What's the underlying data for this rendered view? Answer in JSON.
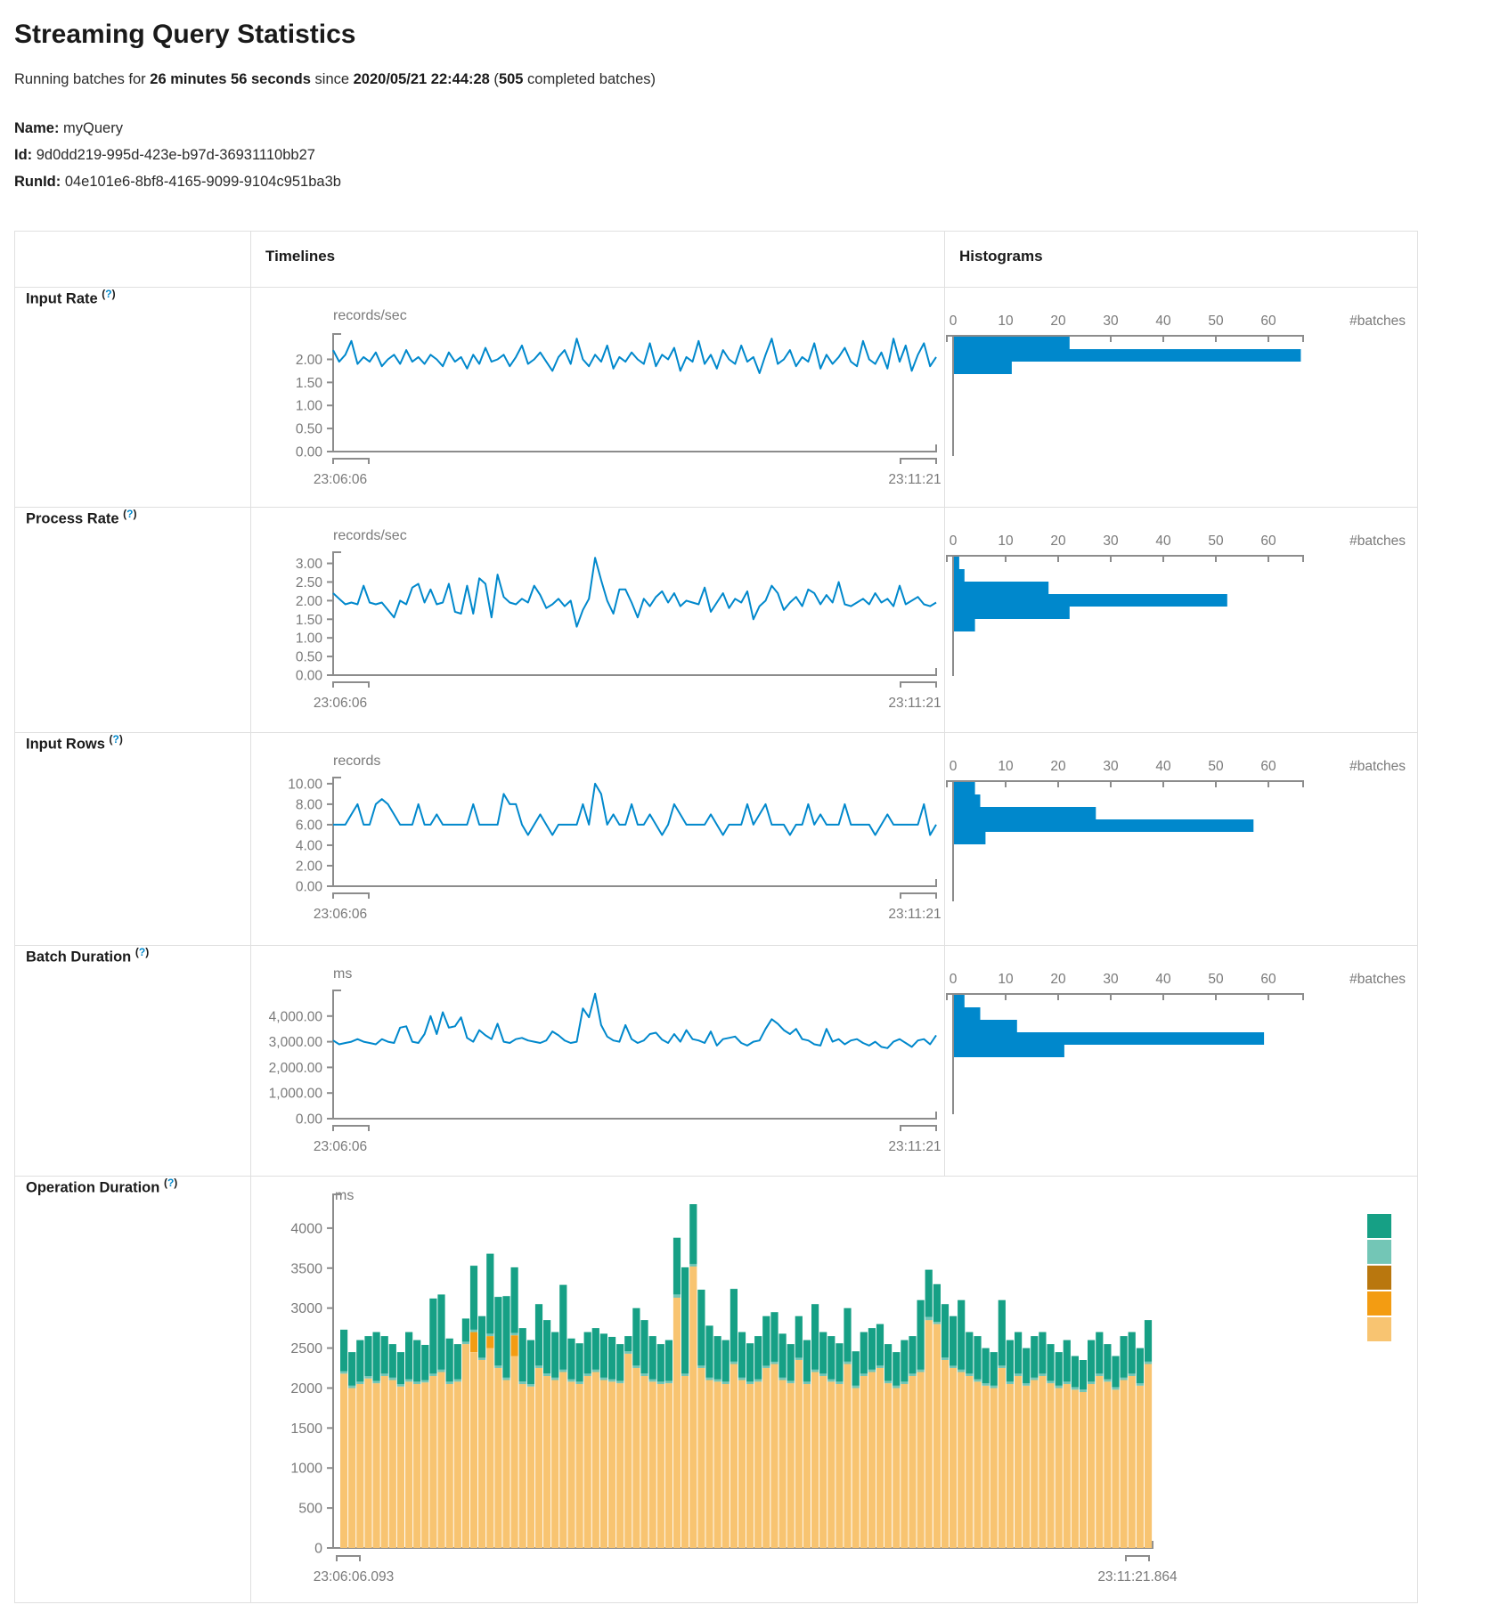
{
  "page": {
    "title": "Streaming Query Statistics",
    "subtitle_prefix": "Running batches for ",
    "duration": "26 minutes 56 seconds",
    "since_word": " since ",
    "start_time": "2020/05/21 22:44:28",
    "paren_open": " (",
    "completed_batches": "505",
    "batches_suffix": " completed batches)"
  },
  "query": {
    "name_label": "Name:",
    "name": " myQuery",
    "id_label": "Id:",
    "id": " 9d0dd219-995d-423e-b97d-36931110bb27",
    "runid_label": "RunId:",
    "runid": " 04e101e6-8bf8-4165-9099-9104c951ba3b"
  },
  "ui": {
    "timelines_header": "Timelines",
    "histograms_header": "Histograms",
    "help_open": "(",
    "help_mark": "?",
    "help_close": ")"
  },
  "colors": {
    "line": "#0088CC",
    "axis": "#8c8c8c",
    "tick_text": "#7a7a7a",
    "ops": [
      "#16A085",
      "#73C6B6",
      "#B9770E",
      "#F39C12",
      "#F8C471"
    ]
  },
  "rows": [
    {
      "label": "Input Rate"
    },
    {
      "label": "Process Rate"
    },
    {
      "label": "Input Rows"
    },
    {
      "label": "Batch Duration"
    },
    {
      "label": "Operation Duration"
    }
  ],
  "chart_data": [
    {
      "id": "input-rate-timeline",
      "type": "line",
      "unit": "records/sec",
      "x_start": "23:06:06",
      "x_end": "23:11:21",
      "y_ticks": [
        0,
        0.5,
        1,
        1.5,
        2
      ],
      "y_tick_labels": [
        "0.00",
        "0.50",
        "1.00",
        "1.50",
        "2.00"
      ],
      "ylim": [
        0,
        2.55
      ],
      "values": [
        2.2,
        1.95,
        2.1,
        2.4,
        1.9,
        2.05,
        1.95,
        2.15,
        1.85,
        2.0,
        2.1,
        1.9,
        2.2,
        1.95,
        2.05,
        1.9,
        2.1,
        2.0,
        1.85,
        2.15,
        1.95,
        2.05,
        1.8,
        2.1,
        1.9,
        2.25,
        1.95,
        2.0,
        2.1,
        1.85,
        2.05,
        2.3,
        1.9,
        2.0,
        2.15,
        1.95,
        1.75,
        2.05,
        2.2,
        1.9,
        2.45,
        2.0,
        1.85,
        2.1,
        1.95,
        2.3,
        1.8,
        2.05,
        1.95,
        2.15,
        2.0,
        1.9,
        2.35,
        1.85,
        2.1,
        2.0,
        2.25,
        1.75,
        2.05,
        1.95,
        2.4,
        1.9,
        2.1,
        1.8,
        2.2,
        2.0,
        1.9,
        2.3,
        1.95,
        2.05,
        1.7,
        2.1,
        2.45,
        1.9,
        2.0,
        2.2,
        1.85,
        2.05,
        1.95,
        2.35,
        1.8,
        2.1,
        1.9,
        2.05,
        2.25,
        1.95,
        1.85,
        2.4,
        2.0,
        1.9,
        2.15,
        1.8,
        2.45,
        1.95,
        2.3,
        1.75,
        2.1,
        2.35,
        1.85,
        2.05
      ]
    },
    {
      "id": "input-rate-histogram",
      "type": "bar",
      "orientation": "horizontal",
      "xlabel": "#batches",
      "x_ticks": [
        0,
        10,
        20,
        30,
        40,
        50,
        60
      ],
      "xlim": [
        0,
        68
      ],
      "values": [
        22,
        66,
        11
      ]
    },
    {
      "id": "process-rate-timeline",
      "type": "line",
      "unit": "records/sec",
      "x_start": "23:06:06",
      "x_end": "23:11:21",
      "y_ticks": [
        0,
        0.5,
        1,
        1.5,
        2,
        2.5,
        3
      ],
      "y_tick_labels": [
        "0.00",
        "0.50",
        "1.00",
        "1.50",
        "2.00",
        "2.50",
        "3.00"
      ],
      "ylim": [
        0,
        3.3
      ],
      "values": [
        2.2,
        2.05,
        1.9,
        1.95,
        1.9,
        2.4,
        1.95,
        1.9,
        1.95,
        1.75,
        1.55,
        2.0,
        1.9,
        2.35,
        2.45,
        1.95,
        2.3,
        1.9,
        1.95,
        2.45,
        1.7,
        1.65,
        2.4,
        1.65,
        2.6,
        2.45,
        1.55,
        2.7,
        2.1,
        1.95,
        1.9,
        2.05,
        1.95,
        2.4,
        2.15,
        1.8,
        1.9,
        2.05,
        1.85,
        2.0,
        1.3,
        1.75,
        2.05,
        3.15,
        2.55,
        2.0,
        1.65,
        2.3,
        2.3,
        1.95,
        1.55,
        2.05,
        1.85,
        2.1,
        2.25,
        1.95,
        2.2,
        1.85,
        2.0,
        1.95,
        1.9,
        2.35,
        1.7,
        1.95,
        2.2,
        1.8,
        2.05,
        1.95,
        2.25,
        1.5,
        1.85,
        2.0,
        2.4,
        2.2,
        1.75,
        1.95,
        2.1,
        1.85,
        2.3,
        2.2,
        1.9,
        2.15,
        1.95,
        2.5,
        1.9,
        1.85,
        1.95,
        2.05,
        1.9,
        2.2,
        1.95,
        2.05,
        1.85,
        2.4,
        1.9,
        2.0,
        2.1,
        1.9,
        1.85,
        1.95
      ]
    },
    {
      "id": "process-rate-histogram",
      "type": "bar",
      "orientation": "horizontal",
      "xlabel": "#batches",
      "x_ticks": [
        0,
        10,
        20,
        30,
        40,
        50,
        60
      ],
      "xlim": [
        0,
        68
      ],
      "values": [
        1,
        2,
        18,
        52,
        22,
        4
      ]
    },
    {
      "id": "input-rows-timeline",
      "type": "line",
      "unit": "records",
      "x_start": "23:06:06",
      "x_end": "23:11:21",
      "y_ticks": [
        0,
        2,
        4,
        6,
        8,
        10
      ],
      "y_tick_labels": [
        "0.00",
        "2.00",
        "4.00",
        "6.00",
        "8.00",
        "10.00"
      ],
      "ylim": [
        0,
        10.6
      ],
      "values": [
        6,
        6,
        6,
        7,
        8,
        6,
        6,
        8,
        8.5,
        8,
        7,
        6,
        6,
        6,
        8,
        6,
        6,
        7,
        6,
        6,
        6,
        6,
        6,
        8,
        6,
        6,
        6,
        6,
        9,
        8,
        8,
        6,
        5,
        6,
        7,
        6,
        5,
        6,
        6,
        6,
        6,
        8,
        6,
        10,
        9,
        6,
        7,
        6,
        6,
        8,
        6,
        6,
        7,
        6,
        5,
        6,
        8,
        7,
        6,
        6,
        6,
        6,
        7,
        6,
        5,
        6,
        6,
        6,
        8,
        6,
        7,
        8,
        6,
        6,
        6,
        5,
        6,
        6,
        8,
        6,
        7,
        6,
        6,
        6,
        8,
        6,
        6,
        6,
        6,
        5,
        6,
        7,
        6,
        6,
        6,
        6,
        6,
        8,
        5,
        6
      ]
    },
    {
      "id": "input-rows-histogram",
      "type": "bar",
      "orientation": "horizontal",
      "xlabel": "#batches",
      "x_ticks": [
        0,
        10,
        20,
        30,
        40,
        50,
        60
      ],
      "xlim": [
        0,
        68
      ],
      "values": [
        4,
        5,
        27,
        57,
        6
      ]
    },
    {
      "id": "batch-duration-timeline",
      "type": "line",
      "unit": "ms",
      "x_start": "23:06:06",
      "x_end": "23:11:21",
      "y_ticks": [
        0,
        1000,
        2000,
        3000,
        4000
      ],
      "y_tick_labels": [
        "0.00",
        "1,000.00",
        "2,000.00",
        "3,000.00",
        "4,000.00"
      ],
      "ylim": [
        0,
        5000
      ],
      "values": [
        3050,
        2900,
        2950,
        3000,
        3100,
        3000,
        2950,
        2900,
        3100,
        3000,
        2950,
        3550,
        3600,
        3000,
        2950,
        3300,
        4000,
        3300,
        4150,
        3550,
        3600,
        3950,
        3150,
        3000,
        3450,
        3250,
        3100,
        3700,
        3000,
        2950,
        3100,
        3150,
        3050,
        3000,
        2950,
        3050,
        3400,
        3250,
        3050,
        2950,
        3000,
        4300,
        3950,
        4870,
        3650,
        3200,
        3050,
        3000,
        3650,
        3100,
        2950,
        3050,
        3300,
        3350,
        3080,
        2950,
        3300,
        3000,
        3450,
        3100,
        3050,
        2950,
        3400,
        2850,
        3100,
        3150,
        3200,
        2950,
        2850,
        3000,
        3050,
        3500,
        3880,
        3700,
        3450,
        3300,
        3500,
        3100,
        3050,
        2900,
        2850,
        3500,
        3000,
        3100,
        2900,
        3050,
        3100,
        2950,
        2850,
        3000,
        2800,
        2750,
        3000,
        3100,
        2950,
        2800,
        3050,
        3100,
        2900,
        3250
      ]
    },
    {
      "id": "batch-duration-histogram",
      "type": "bar",
      "orientation": "horizontal",
      "xlabel": "#batches",
      "x_ticks": [
        0,
        10,
        20,
        30,
        40,
        50,
        60
      ],
      "xlim": [
        0,
        68
      ],
      "values": [
        2,
        5,
        12,
        59,
        21
      ]
    },
    {
      "id": "operation-duration",
      "type": "stacked-bar",
      "unit": "ms",
      "x_start": "23:06:06.093",
      "x_end": "23:11:21.864",
      "y_ticks": [
        0,
        500,
        1000,
        1500,
        2000,
        2500,
        3000,
        3500,
        4000
      ],
      "y_tick_labels": [
        "0",
        "500",
        "1000",
        "1500",
        "2000",
        "2500",
        "3000",
        "3500",
        "4000"
      ],
      "ylim": [
        0,
        4400
      ],
      "legend_colors": [
        "#16A085",
        "#73C6B6",
        "#B9770E",
        "#F39C12",
        "#F8C471"
      ],
      "stack_order_note": "per bar: [tan #F8C471, orange #F39C12, ochre #B9770E, light-teal #73C6B6, teal #16A085] bottom to top",
      "bars": [
        [
          2180,
          0,
          0,
          30,
          520
        ],
        [
          2000,
          0,
          0,
          30,
          420
        ],
        [
          2050,
          0,
          0,
          30,
          520
        ],
        [
          2120,
          0,
          0,
          30,
          500
        ],
        [
          2060,
          0,
          0,
          30,
          610
        ],
        [
          2150,
          0,
          0,
          30,
          470
        ],
        [
          2100,
          0,
          0,
          30,
          420
        ],
        [
          2020,
          0,
          0,
          30,
          400
        ],
        [
          2080,
          0,
          0,
          30,
          590
        ],
        [
          2050,
          0,
          0,
          30,
          520
        ],
        [
          2070,
          0,
          0,
          30,
          440
        ],
        [
          2150,
          0,
          0,
          30,
          940
        ],
        [
          2200,
          0,
          0,
          30,
          940
        ],
        [
          2050,
          0,
          0,
          30,
          540
        ],
        [
          2080,
          0,
          0,
          30,
          440
        ],
        [
          2550,
          0,
          0,
          30,
          290
        ],
        [
          2450,
          250,
          0,
          30,
          800
        ],
        [
          2350,
          0,
          0,
          30,
          520
        ],
        [
          2500,
          150,
          0,
          30,
          1000
        ],
        [
          2250,
          0,
          0,
          30,
          860
        ],
        [
          2100,
          0,
          0,
          30,
          1020
        ],
        [
          2400,
          260,
          0,
          30,
          820
        ],
        [
          2050,
          0,
          0,
          30,
          670
        ],
        [
          2020,
          0,
          0,
          30,
          550
        ],
        [
          2250,
          0,
          0,
          30,
          770
        ],
        [
          2150,
          0,
          0,
          30,
          670
        ],
        [
          2100,
          0,
          0,
          30,
          570
        ],
        [
          2200,
          0,
          0,
          30,
          1060
        ],
        [
          2080,
          0,
          0,
          30,
          510
        ],
        [
          2050,
          0,
          0,
          30,
          480
        ],
        [
          2150,
          0,
          0,
          30,
          520
        ],
        [
          2200,
          0,
          0,
          30,
          520
        ],
        [
          2100,
          0,
          0,
          30,
          550
        ],
        [
          2080,
          0,
          0,
          30,
          530
        ],
        [
          2060,
          0,
          0,
          30,
          460
        ],
        [
          2430,
          0,
          0,
          30,
          190
        ],
        [
          2250,
          0,
          0,
          30,
          720
        ],
        [
          2150,
          0,
          0,
          30,
          670
        ],
        [
          2080,
          0,
          0,
          30,
          540
        ],
        [
          2050,
          0,
          0,
          30,
          470
        ],
        [
          2060,
          0,
          0,
          30,
          510
        ],
        [
          3130,
          0,
          0,
          40,
          710
        ],
        [
          2150,
          0,
          0,
          30,
          1330
        ],
        [
          3520,
          0,
          0,
          30,
          750
        ],
        [
          2250,
          0,
          0,
          30,
          950
        ],
        [
          2100,
          0,
          0,
          30,
          650
        ],
        [
          2080,
          0,
          0,
          30,
          540
        ],
        [
          2050,
          0,
          0,
          30,
          520
        ],
        [
          2300,
          0,
          0,
          30,
          910
        ],
        [
          2100,
          0,
          0,
          30,
          570
        ],
        [
          2050,
          0,
          0,
          30,
          480
        ],
        [
          2080,
          0,
          0,
          30,
          540
        ],
        [
          2250,
          0,
          0,
          30,
          620
        ],
        [
          2300,
          0,
          0,
          30,
          620
        ],
        [
          2100,
          0,
          0,
          30,
          550
        ],
        [
          2060,
          0,
          0,
          30,
          460
        ],
        [
          2350,
          0,
          0,
          30,
          520
        ],
        [
          2050,
          0,
          0,
          30,
          520
        ],
        [
          2200,
          0,
          0,
          30,
          820
        ],
        [
          2150,
          0,
          0,
          30,
          520
        ],
        [
          2080,
          0,
          0,
          30,
          540
        ],
        [
          2050,
          0,
          0,
          30,
          480
        ],
        [
          2300,
          0,
          0,
          30,
          670
        ],
        [
          2000,
          0,
          0,
          30,
          430
        ],
        [
          2150,
          0,
          0,
          30,
          520
        ],
        [
          2200,
          0,
          0,
          30,
          520
        ],
        [
          2250,
          0,
          0,
          30,
          520
        ],
        [
          2060,
          0,
          0,
          30,
          460
        ],
        [
          2000,
          0,
          0,
          30,
          420
        ],
        [
          2050,
          0,
          0,
          30,
          520
        ],
        [
          2150,
          0,
          0,
          30,
          470
        ],
        [
          2200,
          0,
          0,
          30,
          870
        ],
        [
          2850,
          0,
          0,
          40,
          590
        ],
        [
          2800,
          0,
          0,
          30,
          470
        ],
        [
          2350,
          0,
          0,
          30,
          670
        ],
        [
          2250,
          0,
          0,
          30,
          620
        ],
        [
          2200,
          0,
          0,
          30,
          870
        ],
        [
          2150,
          0,
          0,
          30,
          520
        ],
        [
          2080,
          0,
          0,
          30,
          540
        ],
        [
          2030,
          0,
          0,
          30,
          440
        ],
        [
          2000,
          0,
          0,
          30,
          420
        ],
        [
          2250,
          0,
          0,
          30,
          820
        ],
        [
          2050,
          0,
          0,
          30,
          520
        ],
        [
          2150,
          0,
          0,
          30,
          520
        ],
        [
          2030,
          0,
          0,
          30,
          440
        ],
        [
          2100,
          0,
          0,
          30,
          520
        ],
        [
          2150,
          0,
          0,
          30,
          520
        ],
        [
          2060,
          0,
          0,
          30,
          460
        ],
        [
          2000,
          0,
          0,
          30,
          420
        ],
        [
          2050,
          0,
          0,
          30,
          520
        ],
        [
          1980,
          0,
          0,
          30,
          390
        ],
        [
          1950,
          0,
          0,
          30,
          370
        ],
        [
          2050,
          0,
          0,
          30,
          520
        ],
        [
          2150,
          0,
          0,
          30,
          520
        ],
        [
          2080,
          0,
          0,
          30,
          440
        ],
        [
          1980,
          0,
          0,
          30,
          390
        ],
        [
          2100,
          0,
          0,
          30,
          520
        ],
        [
          2150,
          0,
          0,
          30,
          520
        ],
        [
          2030,
          0,
          0,
          30,
          440
        ],
        [
          2300,
          0,
          0,
          30,
          520
        ]
      ]
    }
  ]
}
